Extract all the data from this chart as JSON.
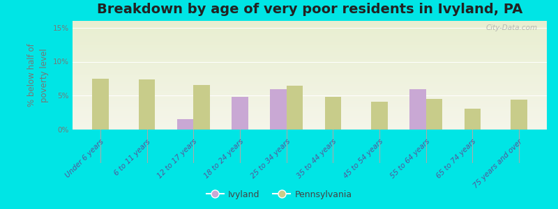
{
  "title": "Breakdown by age of very poor residents in Ivyland, PA",
  "ylabel": "% below half of\npoverty level",
  "categories": [
    "Under 6 years",
    "6 to 11 years",
    "12 to 17 years",
    "18 to 24 years",
    "25 to 34 years",
    "35 to 44 years",
    "45 to 54 years",
    "55 to 64 years",
    "65 to 74 years",
    "75 years and over"
  ],
  "ivyland_values": [
    null,
    null,
    1.5,
    4.8,
    6.0,
    null,
    null,
    5.9,
    null,
    null
  ],
  "pennsylvania_values": [
    7.5,
    7.4,
    6.6,
    null,
    6.5,
    4.8,
    4.1,
    4.5,
    3.1,
    4.4
  ],
  "ivyland_color": "#c9a8d4",
  "pennsylvania_color": "#c8cc8a",
  "background_outer": "#00e5e5",
  "background_plot_top": "#e8eed0",
  "background_plot_bottom": "#f5f5ea",
  "ylim": [
    0,
    16
  ],
  "yticks": [
    0,
    5,
    10,
    15
  ],
  "ytick_labels": [
    "0%",
    "5%",
    "10%",
    "15%"
  ],
  "title_fontsize": 14,
  "axis_label_fontsize": 8.5,
  "tick_fontsize": 7.5,
  "bar_width": 0.35,
  "watermark": "City-Data.com"
}
